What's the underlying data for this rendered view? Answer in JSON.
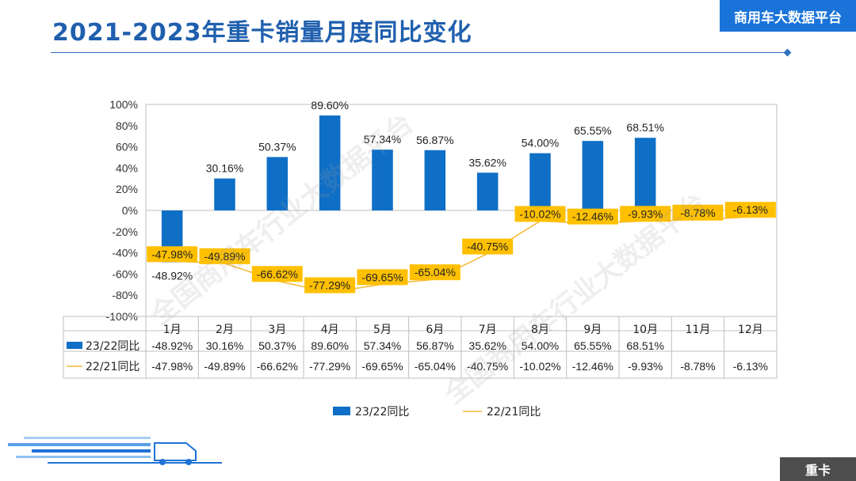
{
  "header": {
    "title": "2021-2023年重卡销量月度同比变化",
    "brand": "商用车大数据平台",
    "tag": "重卡",
    "watermark": "全国商用车行业大数据平台"
  },
  "colors": {
    "bar": "#0f6fc6",
    "line": "#f5b93a",
    "label_bg": "#ffc000",
    "title": "#1f5fae"
  },
  "chart_data": {
    "type": "bar",
    "title": "",
    "categories": [
      "1月",
      "2月",
      "3月",
      "4月",
      "5月",
      "6月",
      "7月",
      "8月",
      "9月",
      "10月",
      "11月",
      "12月"
    ],
    "ylim": [
      -100,
      100
    ],
    "yticks": [
      "100%",
      "80%",
      "60%",
      "40%",
      "20%",
      "0%",
      "-20%",
      "-40%",
      "-60%",
      "-80%",
      "-100%"
    ],
    "series": [
      {
        "name": "23/22同比",
        "type": "bar",
        "values": [
          -48.92,
          30.16,
          50.37,
          89.6,
          57.34,
          56.87,
          35.62,
          54.0,
          65.55,
          68.51,
          null,
          null
        ],
        "labels": [
          "-48.92%",
          "30.16%",
          "50.37%",
          "89.60%",
          "57.34%",
          "56.87%",
          "35.62%",
          "54.00%",
          "65.55%",
          "68.51%",
          "",
          ""
        ]
      },
      {
        "name": "22/21同比",
        "type": "line",
        "values": [
          -47.98,
          -49.89,
          -66.62,
          -77.29,
          -69.65,
          -65.04,
          -40.75,
          -10.02,
          -12.46,
          -9.93,
          -8.78,
          -6.13
        ],
        "labels": [
          "-47.98%",
          "-49.89%",
          "-66.62%",
          "-77.29%",
          "-69.65%",
          "-65.04%",
          "-40.75%",
          "-10.02%",
          "-12.46%",
          "-9.93%",
          "-8.78%",
          "-6.13%"
        ]
      }
    ],
    "legend": "bottom"
  }
}
